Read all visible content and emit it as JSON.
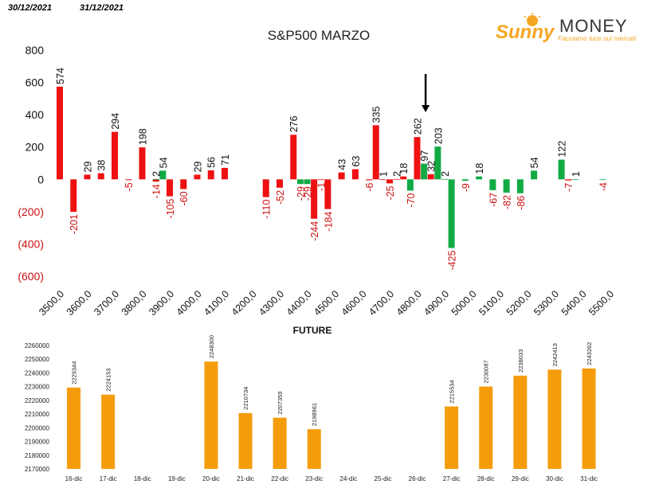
{
  "header": {
    "date_from": "30/12/2021",
    "date_to": "31/12/2021"
  },
  "logo": {
    "word_sunny": "Sunny",
    "word_money": "MONEY",
    "tagline": "Facciamo luce sui mercati"
  },
  "colors": {
    "positive_red": "#ee1111",
    "negative_red": "#ee1111",
    "green": "#11aa44",
    "orange": "#f59c0c",
    "negative_label": "#cc1111"
  },
  "chart_data": [
    {
      "type": "bar",
      "title": "S&P500 MARZO",
      "ylim": [
        -600,
        800
      ],
      "y_ticks": [
        {
          "value": 800,
          "label": "800"
        },
        {
          "value": 600,
          "label": "600"
        },
        {
          "value": 400,
          "label": "400"
        },
        {
          "value": 200,
          "label": "200"
        },
        {
          "value": 0,
          "label": "0"
        },
        {
          "value": -200,
          "label": "(200)"
        },
        {
          "value": -400,
          "label": "(400)"
        },
        {
          "value": -600,
          "label": "(600)"
        }
      ],
      "xlim": [
        3500,
        5500
      ],
      "x_ticks": [
        "3500,0",
        "3600,0",
        "3700,0",
        "3800,0",
        "3900,0",
        "4000,0",
        "4100,0",
        "4200,0",
        "4300,0",
        "4400,0",
        "4500,0",
        "4600,0",
        "4700,0",
        "4800,0",
        "4900,0",
        "5000,0",
        "5100,0",
        "5200,0",
        "5300,0",
        "5400,0",
        "5500,0"
      ],
      "bars": [
        {
          "x": 3500,
          "value": 574,
          "color": "red"
        },
        {
          "x": 3550,
          "value": -201,
          "color": "red"
        },
        {
          "x": 3600,
          "value": 29,
          "color": "red"
        },
        {
          "x": 3650,
          "value": 38,
          "color": "red"
        },
        {
          "x": 3700,
          "value": 294,
          "color": "red"
        },
        {
          "x": 3750,
          "value": -5,
          "color": "red"
        },
        {
          "x": 3800,
          "value": 198,
          "color": "red"
        },
        {
          "x": 3850,
          "value": -14,
          "color": "red"
        },
        {
          "x": 3850,
          "value": 2,
          "color": "green"
        },
        {
          "x": 3875,
          "value": 54,
          "color": "green"
        },
        {
          "x": 3900,
          "value": -105,
          "color": "red"
        },
        {
          "x": 3950,
          "value": -60,
          "color": "red"
        },
        {
          "x": 4000,
          "value": 29,
          "color": "red"
        },
        {
          "x": 4050,
          "value": 56,
          "color": "red"
        },
        {
          "x": 4100,
          "value": 71,
          "color": "red"
        },
        {
          "x": 4250,
          "value": -110,
          "color": "red"
        },
        {
          "x": 4300,
          "value": -52,
          "color": "red"
        },
        {
          "x": 4350,
          "value": 276,
          "color": "red"
        },
        {
          "x": 4375,
          "value": -29,
          "color": "green"
        },
        {
          "x": 4400,
          "value": -29,
          "color": "green"
        },
        {
          "x": 4425,
          "value": -244,
          "color": "red"
        },
        {
          "x": 4450,
          "value": -1,
          "color": "red"
        },
        {
          "x": 4475,
          "value": -184,
          "color": "red"
        },
        {
          "x": 4525,
          "value": 43,
          "color": "red"
        },
        {
          "x": 4575,
          "value": 63,
          "color": "red"
        },
        {
          "x": 4625,
          "value": -6,
          "color": "red"
        },
        {
          "x": 4650,
          "value": 335,
          "color": "red"
        },
        {
          "x": 4675,
          "value": 1,
          "color": "red"
        },
        {
          "x": 4700,
          "value": -25,
          "color": "red"
        },
        {
          "x": 4725,
          "value": 2,
          "color": "red"
        },
        {
          "x": 4750,
          "value": 18,
          "color": "red"
        },
        {
          "x": 4775,
          "value": -70,
          "color": "green"
        },
        {
          "x": 4800,
          "value": 262,
          "color": "red"
        },
        {
          "x": 4825,
          "value": 97,
          "color": "green"
        },
        {
          "x": 4850,
          "value": 32,
          "color": "red"
        },
        {
          "x": 4875,
          "value": 203,
          "color": "green"
        },
        {
          "x": 4900,
          "value": 2,
          "color": "green"
        },
        {
          "x": 4925,
          "value": -425,
          "color": "green"
        },
        {
          "x": 4975,
          "value": -9,
          "color": "green"
        },
        {
          "x": 5025,
          "value": 18,
          "color": "green"
        },
        {
          "x": 5075,
          "value": -67,
          "color": "green"
        },
        {
          "x": 5125,
          "value": -82,
          "color": "green"
        },
        {
          "x": 5175,
          "value": -86,
          "color": "green"
        },
        {
          "x": 5225,
          "value": 54,
          "color": "green"
        },
        {
          "x": 5325,
          "value": 122,
          "color": "green"
        },
        {
          "x": 5350,
          "value": -7,
          "color": "red"
        },
        {
          "x": 5375,
          "value": 1,
          "color": "green"
        },
        {
          "x": 5475,
          "value": -4,
          "color": "green"
        }
      ],
      "arrow_x": 4825
    },
    {
      "type": "bar",
      "title": "FUTURE",
      "ylim": [
        2170000,
        2260000
      ],
      "y_ticks": [
        "2260000",
        "2250000",
        "2240000",
        "2230000",
        "2220000",
        "2210000",
        "2200000",
        "2190000",
        "2180000",
        "2170000"
      ],
      "categories": [
        "16-dic",
        "17-dic",
        "18-dic",
        "19-dic",
        "20-dic",
        "21-dic",
        "22-dic",
        "23-dic",
        "24-dic",
        "25-dic",
        "26-dic",
        "27-dic",
        "28-dic",
        "29-dic",
        "30-dic",
        "31-dic"
      ],
      "values": [
        2229344,
        2224153,
        null,
        null,
        2248300,
        2210734,
        2207359,
        2198961,
        null,
        null,
        null,
        2215534,
        2230087,
        2238033,
        2242413,
        2243262
      ]
    }
  ]
}
